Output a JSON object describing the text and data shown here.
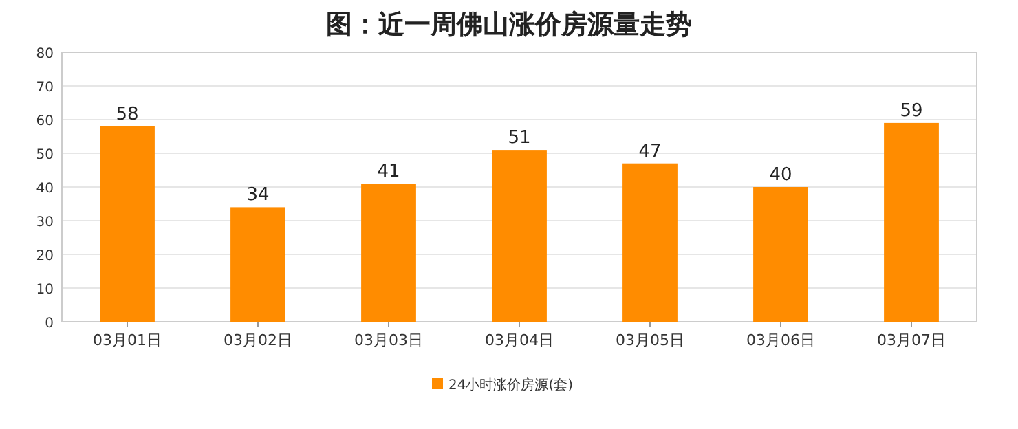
{
  "chart_data": {
    "type": "bar",
    "title": "图：近一周佛山涨价房源量走势",
    "categories": [
      "03月01日",
      "03月02日",
      "03月03日",
      "03月04日",
      "03月05日",
      "03月06日",
      "03月07日"
    ],
    "series": [
      {
        "name": "24小时涨价房源(套)",
        "color": "#ff8c00",
        "values": [
          58,
          34,
          41,
          51,
          47,
          40,
          59
        ]
      }
    ],
    "ylim": [
      0,
      80
    ],
    "yticks": [
      0,
      10,
      20,
      30,
      40,
      50,
      60,
      70,
      80
    ],
    "grid": "y",
    "legend": "bottom",
    "data_labels": true
  }
}
